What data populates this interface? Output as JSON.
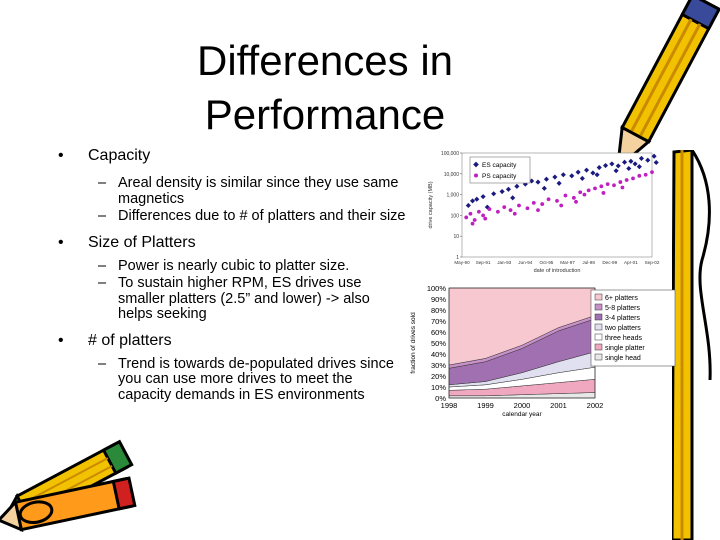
{
  "slide": {
    "title_line1": "Differences in",
    "title_line2": "Performance",
    "bullets": [
      {
        "label": "Capacity",
        "subs": [
          "Areal density is similar since they use same magnetics",
          "Differences due to # of platters and their size"
        ]
      },
      {
        "label": "Size of Platters",
        "subs": [
          "Power is nearly cubic to platter size.",
          "To sustain higher RPM, ES drives use smaller platters (2.5” and lower) -> also helps seeking"
        ]
      },
      {
        "label": "# of platters",
        "subs": [
          "Trend is towards de-populated drives since you can use more drives to meet the capacity demands in ES environments"
        ]
      }
    ]
  },
  "chart_data": [
    {
      "type": "scatter",
      "xlabel": "date of introduction",
      "ylabel": "drive capacity (MB)",
      "y_scale": "log",
      "ylim": [
        1,
        100000
      ],
      "y_ticks": [
        "100,000",
        "10,000",
        "1,000",
        "100",
        "10",
        "1"
      ],
      "x_ticks": [
        "May-90",
        "Sep-91",
        "Jan-93",
        "Jun-94",
        "Oct-95",
        "Mar-97",
        "Jul-98",
        "Dec-99",
        "Apr-01",
        "Sep-02"
      ],
      "legend_position": "top-left",
      "series": [
        {
          "name": "ES capacity",
          "color": "#1a1a80",
          "points": [
            [
              0.3,
              300
            ],
            [
              0.5,
              500
            ],
            [
              0.7,
              600
            ],
            [
              1.0,
              800
            ],
            [
              1.5,
              1100
            ],
            [
              1.9,
              1400
            ],
            [
              2.2,
              1800
            ],
            [
              2.6,
              2500
            ],
            [
              3.0,
              3200
            ],
            [
              3.3,
              4500
            ],
            [
              3.6,
              4000
            ],
            [
              4.0,
              5500
            ],
            [
              4.4,
              7000
            ],
            [
              4.8,
              9000
            ],
            [
              5.2,
              8000
            ],
            [
              5.5,
              12000
            ],
            [
              5.9,
              15000
            ],
            [
              6.2,
              11000
            ],
            [
              6.5,
              20000
            ],
            [
              6.8,
              25000
            ],
            [
              7.1,
              30000
            ],
            [
              7.4,
              24000
            ],
            [
              7.7,
              36000
            ],
            [
              8.0,
              40000
            ],
            [
              8.2,
              30000
            ],
            [
              8.5,
              55000
            ],
            [
              8.8,
              45000
            ],
            [
              9.1,
              70000
            ],
            [
              3.9,
              2000
            ],
            [
              4.6,
              3500
            ],
            [
              5.7,
              6000
            ],
            [
              6.4,
              9000
            ],
            [
              7.3,
              14000
            ],
            [
              7.9,
              18000
            ],
            [
              8.4,
              22000
            ],
            [
              9.2,
              35000
            ],
            [
              2.4,
              700
            ],
            [
              1.2,
              250
            ]
          ]
        },
        {
          "name": "PS capacity",
          "color": "#c020c0",
          "points": [
            [
              0.2,
              80
            ],
            [
              0.4,
              120
            ],
            [
              0.6,
              60
            ],
            [
              0.8,
              150
            ],
            [
              1.0,
              100
            ],
            [
              1.3,
              200
            ],
            [
              1.7,
              150
            ],
            [
              2.0,
              250
            ],
            [
              2.3,
              180
            ],
            [
              2.7,
              300
            ],
            [
              3.1,
              220
            ],
            [
              3.4,
              400
            ],
            [
              3.8,
              350
            ],
            [
              4.1,
              600
            ],
            [
              4.5,
              500
            ],
            [
              4.9,
              900
            ],
            [
              5.3,
              700
            ],
            [
              5.6,
              1300
            ],
            [
              5.8,
              1000
            ],
            [
              6.0,
              1600
            ],
            [
              6.3,
              2000
            ],
            [
              6.6,
              2500
            ],
            [
              6.9,
              3200
            ],
            [
              7.2,
              2800
            ],
            [
              7.5,
              4000
            ],
            [
              7.8,
              5000
            ],
            [
              8.1,
              6000
            ],
            [
              8.4,
              8000
            ],
            [
              8.7,
              9000
            ],
            [
              9.0,
              12000
            ],
            [
              0.5,
              40
            ],
            [
              1.1,
              70
            ],
            [
              2.5,
              120
            ],
            [
              3.6,
              180
            ],
            [
              4.7,
              300
            ],
            [
              5.4,
              450
            ],
            [
              6.7,
              1200
            ],
            [
              7.6,
              2200
            ]
          ]
        }
      ]
    },
    {
      "type": "area",
      "stacked": true,
      "xlabel": "calendar year",
      "ylabel": "fraction of drives sold",
      "ylim": [
        0,
        100
      ],
      "y_ticks": [
        "100%",
        "90%",
        "80%",
        "70%",
        "60%",
        "50%",
        "40%",
        "30%",
        "20%",
        "10%",
        "0%"
      ],
      "categories": [
        "1998",
        "1999",
        "2000",
        "2001",
        "2002"
      ],
      "legend_position": "right",
      "series": [
        {
          "name": "single head",
          "color": "#e8e8e8",
          "values": [
            2,
            2,
            3,
            4,
            5
          ]
        },
        {
          "name": "single platter",
          "color": "#f0a8c0",
          "values": [
            5,
            6,
            8,
            10,
            12
          ]
        },
        {
          "name": "three heads",
          "color": "#ffffff",
          "values": [
            3,
            4,
            6,
            9,
            11
          ]
        },
        {
          "name": "two platters",
          "color": "#e0e0f0",
          "values": [
            2,
            3,
            6,
            10,
            14
          ]
        },
        {
          "name": "3-4 platters",
          "color": "#a070b0",
          "values": [
            15,
            18,
            22,
            28,
            30
          ]
        },
        {
          "name": "5-8 platters",
          "color": "#c890c8",
          "values": [
            3,
            3,
            3,
            3,
            3
          ]
        },
        {
          "name": "6+ platters",
          "color": "#f8c8d0",
          "values": [
            70,
            64,
            52,
            36,
            25
          ]
        }
      ]
    }
  ]
}
